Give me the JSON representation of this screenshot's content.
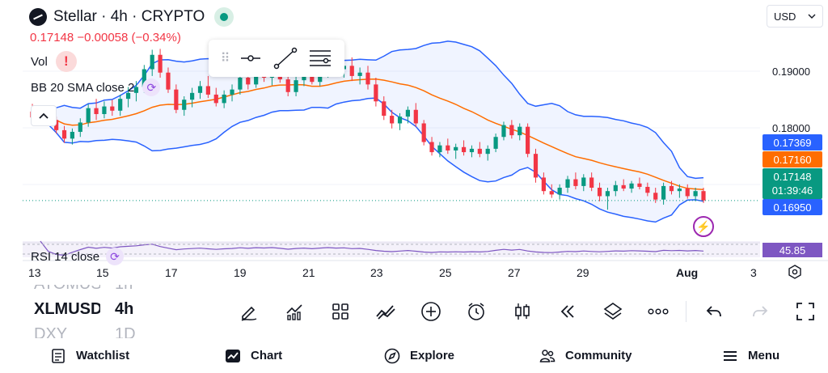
{
  "header": {
    "symbol_title": "Stellar · 4h · CRYPTO",
    "price_change": "0.17148 −0.00058 (−0.34%)",
    "currency": "USD"
  },
  "indicators": {
    "volume_label": "Vol",
    "bb_label": "BB 20 SMA close 2",
    "rsi_label": "RSI 14 close"
  },
  "price_axis": {
    "ticks": [
      "0.19000",
      "0.18000"
    ],
    "tags": {
      "bb_upper": "0.17369",
      "bb_basis": "0.17160",
      "current_price": "0.17148",
      "countdown": "01:39:46",
      "bb_lower": "0.16950"
    },
    "rsi_value": "45.85"
  },
  "time_axis": {
    "ticks": [
      "13",
      "15",
      "17",
      "19",
      "21",
      "23",
      "25",
      "27",
      "29",
      "Aug",
      "3"
    ]
  },
  "symbol_list": {
    "rows": [
      {
        "symbol": "ATOMUSDT",
        "interval": "1h",
        "state": "faded"
      },
      {
        "symbol": "XLMUSDT",
        "interval": "4h",
        "state": "active"
      },
      {
        "symbol": "DXY",
        "interval": "1D",
        "state": "faded"
      }
    ]
  },
  "toolbar": {
    "icons": [
      "draw-icon",
      "indicators-icon",
      "layouts-icon",
      "drawings-icon",
      "add-icon",
      "alert-icon",
      "candles-icon",
      "replay-icon",
      "layers-icon",
      "more-icon",
      "undo-icon",
      "redo-icon",
      "fullscreen-icon"
    ]
  },
  "nav": {
    "watchlist": "Watchlist",
    "chart": "Chart",
    "explore": "Explore",
    "community": "Community",
    "menu": "Menu"
  },
  "colors": {
    "up": "#089981",
    "down": "#f23645",
    "bb_band": "#2962ff",
    "bb_basis": "#ff6d00",
    "rsi_line": "#7e57c2"
  },
  "chart_data": {
    "type": "candlestick",
    "interval": "4h",
    "y_range": [
      0.1665,
      0.1925
    ],
    "candles": [
      [
        0.182,
        0.1829,
        0.1806,
        0.1813
      ],
      [
        0.1813,
        0.1822,
        0.1803,
        0.1818
      ],
      [
        0.1818,
        0.1823,
        0.1808,
        0.181
      ],
      [
        0.181,
        0.1814,
        0.1794,
        0.1798
      ],
      [
        0.1798,
        0.1803,
        0.1783,
        0.1788
      ],
      [
        0.1788,
        0.18,
        0.1781,
        0.1796
      ],
      [
        0.1796,
        0.1812,
        0.179,
        0.1807
      ],
      [
        0.1807,
        0.1829,
        0.1802,
        0.1824
      ],
      [
        0.1824,
        0.1835,
        0.181,
        0.1817
      ],
      [
        0.1817,
        0.1832,
        0.1812,
        0.1826
      ],
      [
        0.1826,
        0.1834,
        0.1815,
        0.1821
      ],
      [
        0.1821,
        0.184,
        0.1815,
        0.1835
      ],
      [
        0.1835,
        0.1849,
        0.1825,
        0.1842
      ],
      [
        0.1842,
        0.1856,
        0.1832,
        0.1849
      ],
      [
        0.1849,
        0.1875,
        0.1842,
        0.187
      ],
      [
        0.187,
        0.1893,
        0.1862,
        0.1887
      ],
      [
        0.1887,
        0.1894,
        0.186,
        0.1866
      ],
      [
        0.1866,
        0.1872,
        0.1842,
        0.1846
      ],
      [
        0.1846,
        0.1852,
        0.1818,
        0.1822
      ],
      [
        0.1822,
        0.1838,
        0.1815,
        0.1834
      ],
      [
        0.1834,
        0.1848,
        0.1825,
        0.1842
      ],
      [
        0.1842,
        0.1856,
        0.1835,
        0.185
      ],
      [
        0.185,
        0.1862,
        0.1836,
        0.184
      ],
      [
        0.184,
        0.1848,
        0.1826,
        0.183
      ],
      [
        0.183,
        0.1845,
        0.1824,
        0.184
      ],
      [
        0.184,
        0.1852,
        0.1832,
        0.1846
      ],
      [
        0.1846,
        0.1866,
        0.184,
        0.186
      ],
      [
        0.186,
        0.1872,
        0.1846,
        0.1852
      ],
      [
        0.1852,
        0.1868,
        0.1848,
        0.1864
      ],
      [
        0.1864,
        0.1876,
        0.1855,
        0.186
      ],
      [
        0.186,
        0.1872,
        0.1851,
        0.1868
      ],
      [
        0.1868,
        0.1878,
        0.1854,
        0.1858
      ],
      [
        0.1858,
        0.1866,
        0.1838,
        0.1843
      ],
      [
        0.1843,
        0.1862,
        0.1838,
        0.1857
      ],
      [
        0.1857,
        0.187,
        0.185,
        0.1865
      ],
      [
        0.1865,
        0.1876,
        0.1852,
        0.1855
      ],
      [
        0.1855,
        0.187,
        0.185,
        0.1866
      ],
      [
        0.1866,
        0.188,
        0.186,
        0.1876
      ],
      [
        0.1876,
        0.1902,
        0.1866,
        0.187
      ],
      [
        0.187,
        0.1882,
        0.186,
        0.1874
      ],
      [
        0.1874,
        0.1884,
        0.1856,
        0.1862
      ],
      [
        0.1862,
        0.1872,
        0.1852,
        0.1866
      ],
      [
        0.1866,
        0.1874,
        0.1846,
        0.1852
      ],
      [
        0.1852,
        0.186,
        0.1826,
        0.1832
      ],
      [
        0.1832,
        0.1838,
        0.181,
        0.1815
      ],
      [
        0.1815,
        0.1822,
        0.18,
        0.1806
      ],
      [
        0.1806,
        0.1818,
        0.1798,
        0.1814
      ],
      [
        0.1814,
        0.1826,
        0.1806,
        0.1822
      ],
      [
        0.1822,
        0.183,
        0.1802,
        0.1806
      ],
      [
        0.1806,
        0.181,
        0.178,
        0.1784
      ],
      [
        0.1784,
        0.179,
        0.1768,
        0.1772
      ],
      [
        0.1772,
        0.1784,
        0.1766,
        0.178
      ],
      [
        0.178,
        0.1788,
        0.177,
        0.1774
      ],
      [
        0.1774,
        0.1782,
        0.1764,
        0.1778
      ],
      [
        0.1778,
        0.1786,
        0.1768,
        0.1772
      ],
      [
        0.1772,
        0.178,
        0.1766,
        0.1776
      ],
      [
        0.1776,
        0.1784,
        0.1766,
        0.177
      ],
      [
        0.177,
        0.178,
        0.1762,
        0.1776
      ],
      [
        0.1776,
        0.1794,
        0.1772,
        0.179
      ],
      [
        0.179,
        0.1808,
        0.1786,
        0.1804
      ],
      [
        0.1804,
        0.181,
        0.1788,
        0.1792
      ],
      [
        0.1792,
        0.1806,
        0.1786,
        0.1802
      ],
      [
        0.1802,
        0.1806,
        0.1766,
        0.177
      ],
      [
        0.177,
        0.1776,
        0.1736,
        0.1742
      ],
      [
        0.1742,
        0.1748,
        0.1722,
        0.1726
      ],
      [
        0.1726,
        0.1734,
        0.1718,
        0.1722
      ],
      [
        0.1722,
        0.1734,
        0.1716,
        0.173
      ],
      [
        0.173,
        0.1744,
        0.1724,
        0.174
      ],
      [
        0.174,
        0.1748,
        0.1728,
        0.1732
      ],
      [
        0.1732,
        0.1746,
        0.1726,
        0.1742
      ],
      [
        0.1742,
        0.1748,
        0.1726,
        0.173
      ],
      [
        0.173,
        0.1736,
        0.1714,
        0.172
      ],
      [
        0.172,
        0.173,
        0.1704,
        0.1726
      ],
      [
        0.1726,
        0.1738,
        0.172,
        0.1733
      ],
      [
        0.1733,
        0.174,
        0.1726,
        0.1729
      ],
      [
        0.1729,
        0.1738,
        0.1724,
        0.1735
      ],
      [
        0.1735,
        0.1742,
        0.1728,
        0.1731
      ],
      [
        0.1731,
        0.1736,
        0.172,
        0.1724
      ],
      [
        0.1724,
        0.173,
        0.1712,
        0.1716
      ],
      [
        0.1716,
        0.1736,
        0.171,
        0.1732
      ],
      [
        0.1732,
        0.1738,
        0.1722,
        0.1726
      ],
      [
        0.1726,
        0.1734,
        0.1718,
        0.1729
      ],
      [
        0.1729,
        0.1734,
        0.1717,
        0.172
      ],
      [
        0.172,
        0.173,
        0.1714,
        0.1726
      ],
      [
        0.1726,
        0.173,
        0.1712,
        0.1715
      ]
    ]
  }
}
